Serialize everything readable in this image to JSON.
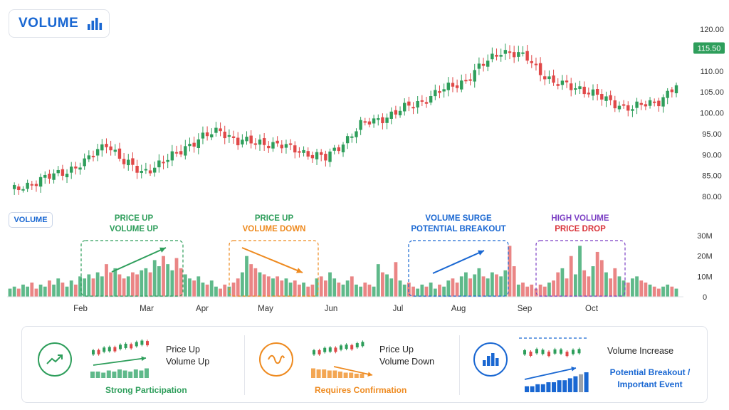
{
  "header": {
    "title": "VOLUME",
    "icon": "bar-chart-icon"
  },
  "volume_badge": "VOLUME",
  "price_label": {
    "value": "115.50",
    "color": "#2e9e5b"
  },
  "colors": {
    "up": "#2e9e5b",
    "down": "#e04848",
    "up_vol": "#5fb98a",
    "down_vol": "#ea8585"
  },
  "annotations": [
    {
      "line1": "PRICE UP",
      "line2": "VOLUME UP",
      "color1": "#2e9e5b",
      "color2": "#2e9e5b"
    },
    {
      "line1": "PRICE UP",
      "line2": "VOLUME DOWN",
      "color1": "#2e9e5b",
      "color2": "#ee8a1f"
    },
    {
      "line1": "VOLUME SURGE",
      "line2": "POTENTIAL BREAKOUT",
      "color1": "#1967d2",
      "color2": "#1967d2"
    },
    {
      "line1": "HIGH VOLUME",
      "line2": "PRICE DROP",
      "color1": "#7b3fc4",
      "color2": "#d9343a"
    }
  ],
  "legend": [
    {
      "line1": "Price Up",
      "line2": "Volume Up",
      "footer": "Strong Participation",
      "color": "#2e9e5b",
      "icon": "trend-up-icon"
    },
    {
      "line1": "Price Up",
      "line2": "Volume Down",
      "footer": "Requires Confirmation",
      "color": "#ee8a1f",
      "icon": "wave-icon"
    },
    {
      "line1": "Volume Increase",
      "line2": "",
      "footer": "Potential Breakout / Important Event",
      "color": "#1967d2",
      "icon": "bar-chart-icon"
    }
  ],
  "chart_data": [
    {
      "type": "candlestick",
      "title": "",
      "ylim": [
        79,
        121
      ],
      "yticks": [
        "120.00",
        "115.00",
        "110.00",
        "105.00",
        "100.00",
        "95.00",
        "90.00",
        "85.00",
        "80.00"
      ],
      "ytick_values": [
        120,
        115,
        110,
        105,
        100,
        95,
        90,
        85,
        80
      ],
      "grid": false,
      "x_months": [
        "Feb",
        "Mar",
        "Apr",
        "May",
        "Jun",
        "Jul",
        "Aug",
        "Sep",
        "Oct"
      ],
      "close_anchors": [
        [
          0,
          81
        ],
        [
          3,
          82.5
        ],
        [
          10,
          85
        ],
        [
          17,
          88
        ],
        [
          22,
          93
        ],
        [
          26,
          88
        ],
        [
          30,
          86
        ],
        [
          35,
          88
        ],
        [
          40,
          92
        ],
        [
          48,
          96
        ],
        [
          52,
          93
        ],
        [
          58,
          93
        ],
        [
          66,
          91
        ],
        [
          72,
          89
        ],
        [
          80,
          97
        ],
        [
          88,
          100
        ],
        [
          96,
          104
        ],
        [
          104,
          108
        ],
        [
          112,
          115
        ],
        [
          118,
          113
        ],
        [
          124,
          107
        ],
        [
          130,
          106
        ],
        [
          136,
          103
        ],
        [
          142,
          101
        ],
        [
          148,
          103
        ],
        [
          154,
          108
        ],
        [
          160,
          111
        ],
        [
          166,
          106
        ],
        [
          172,
          104
        ],
        [
          178,
          107
        ],
        [
          184,
          106
        ],
        [
          190,
          113
        ],
        [
          196,
          115
        ],
        [
          200,
          116
        ],
        [
          204,
          115.5
        ]
      ]
    },
    {
      "type": "bar",
      "title": "",
      "ylim": [
        0,
        30
      ],
      "yticks": [
        "30M",
        "20M",
        "10M",
        "0"
      ],
      "ytick_values": [
        30,
        20,
        10,
        0
      ],
      "unit": "M",
      "volumes_millions": [
        4,
        5,
        4,
        6,
        5,
        7,
        4,
        6,
        5,
        8,
        6,
        9,
        7,
        5,
        8,
        6,
        10,
        9,
        11,
        9,
        12,
        10,
        16,
        12,
        14,
        11,
        9,
        10,
        12,
        11,
        13,
        14,
        12,
        18,
        15,
        20,
        16,
        13,
        19,
        14,
        11,
        9,
        8,
        10,
        7,
        6,
        8,
        5,
        4,
        6,
        5,
        7,
        9,
        12,
        20,
        16,
        14,
        12,
        11,
        10,
        9,
        10,
        8,
        9,
        7,
        8,
        6,
        7,
        5,
        6,
        9,
        10,
        8,
        12,
        9,
        7,
        6,
        8,
        10,
        6,
        5,
        7,
        6,
        5,
        16,
        12,
        11,
        9,
        17,
        8,
        6,
        7,
        5,
        4,
        6,
        5,
        7,
        4,
        6,
        5,
        8,
        9,
        7,
        10,
        12,
        9,
        11,
        14,
        10,
        9,
        12,
        11,
        10,
        13,
        25,
        15,
        6,
        7,
        5,
        6,
        4,
        6,
        5,
        7,
        8,
        12,
        14,
        9,
        20,
        11,
        25,
        13,
        10,
        15,
        22,
        18,
        12,
        9,
        14,
        10,
        8,
        7,
        9,
        10,
        8,
        7,
        6,
        5,
        4,
        5,
        6,
        5,
        4
      ]
    }
  ]
}
